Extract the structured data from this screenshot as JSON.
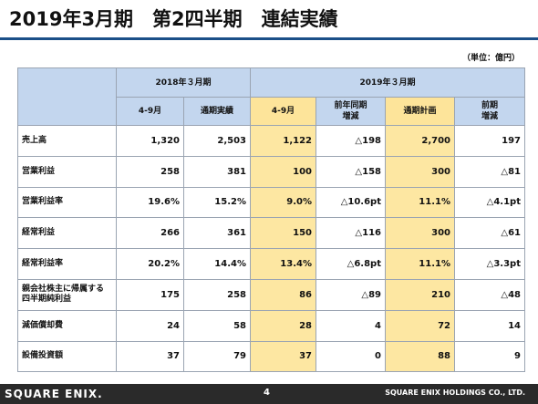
{
  "title": "2019年3月期　第2四半期　連結実績",
  "unit": "（単位：億円）",
  "header": {
    "group_prev": "2018年３月期",
    "group_curr": "2019年３月期",
    "cols": [
      "4-9月",
      "通期実績",
      "4-9月",
      "前年同期\n増減",
      "通期計画",
      "前期\n増減"
    ]
  },
  "rows": [
    {
      "label": "売上高",
      "values": [
        "1,320",
        "2,503",
        "1,122",
        "△198",
        "2,700",
        "197"
      ]
    },
    {
      "label": "営業利益",
      "values": [
        "258",
        "381",
        "100",
        "△158",
        "300",
        "△81"
      ]
    },
    {
      "label": "営業利益率",
      "values": [
        "19.6%",
        "15.2%",
        "9.0%",
        "△10.6pt",
        "11.1%",
        "△4.1pt"
      ]
    },
    {
      "label": "経常利益",
      "values": [
        "266",
        "361",
        "150",
        "△116",
        "300",
        "△61"
      ]
    },
    {
      "label": "経常利益率",
      "values": [
        "20.2%",
        "14.4%",
        "13.4%",
        "△6.8pt",
        "11.1%",
        "△3.3pt"
      ]
    },
    {
      "label": "親会社株主に帰属する\n四半期純利益",
      "values": [
        "175",
        "258",
        "86",
        "△89",
        "210",
        "△48"
      ]
    },
    {
      "label": "減価償却費",
      "values": [
        "24",
        "58",
        "28",
        "4",
        "72",
        "14"
      ]
    },
    {
      "label": "設備投資額",
      "values": [
        "37",
        "79",
        "37",
        "0",
        "88",
        "9"
      ]
    }
  ],
  "footer": {
    "logo": "SQUARE ENIX.",
    "page": "4",
    "company": "SQUARE ENIX HOLDINGS CO., LTD."
  },
  "colors": {
    "header_blue": "#c3d6ee",
    "highlight_yellow": "#fde7a2",
    "rule_blue": "#1b4f88",
    "footer_bg": "#2a2a2a"
  }
}
